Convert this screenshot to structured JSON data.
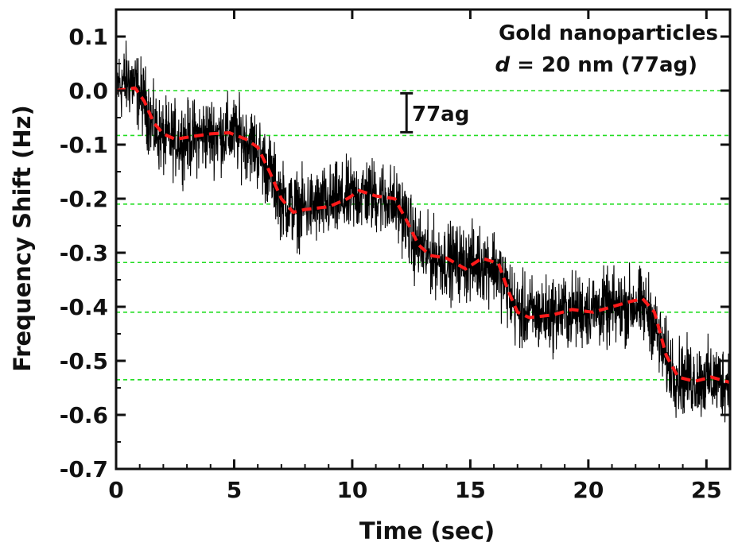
{
  "chart_data": {
    "type": "line",
    "xlabel": "Time (sec)",
    "ylabel": "Frequency Shift (Hz)",
    "xlim": [
      0,
      26
    ],
    "ylim": [
      -0.7,
      0.15
    ],
    "x_ticks": [
      "0",
      "5",
      "10",
      "15",
      "20",
      "25"
    ],
    "y_ticks": [
      "0.1",
      "0.0",
      "-0.1",
      "-0.2",
      "-0.3",
      "-0.4",
      "-0.5",
      "-0.6",
      "-0.7"
    ],
    "annotation_title": "Gold nanoparticles",
    "annotation_sub_italic": "d",
    "annotation_sub_rest": " = 20 nm (77ag)",
    "scale_bar_label": "77ag",
    "scale_bar_range": [
      -0.005,
      -0.077
    ],
    "step_levels": [
      0.0,
      -0.083,
      -0.21,
      -0.318,
      -0.41,
      -0.535
    ],
    "colors": {
      "raw": "#000000",
      "fit": "#ff1a1a",
      "grid": "#22dd22"
    },
    "series": [
      {
        "style": "raw",
        "envelope": [
          {
            "x": 0.0,
            "y": 0.01
          },
          {
            "x": 0.6,
            "y": 0.02
          },
          {
            "x": 1.2,
            "y": -0.02
          },
          {
            "x": 1.6,
            "y": -0.07
          },
          {
            "x": 2.0,
            "y": -0.09
          },
          {
            "x": 3.0,
            "y": -0.09
          },
          {
            "x": 4.0,
            "y": -0.08
          },
          {
            "x": 5.0,
            "y": -0.08
          },
          {
            "x": 5.8,
            "y": -0.1
          },
          {
            "x": 6.5,
            "y": -0.15
          },
          {
            "x": 7.0,
            "y": -0.2
          },
          {
            "x": 7.5,
            "y": -0.22
          },
          {
            "x": 8.5,
            "y": -0.215
          },
          {
            "x": 9.5,
            "y": -0.205
          },
          {
            "x": 10.5,
            "y": -0.19
          },
          {
            "x": 11.5,
            "y": -0.2
          },
          {
            "x": 12.2,
            "y": -0.23
          },
          {
            "x": 12.6,
            "y": -0.28
          },
          {
            "x": 13.2,
            "y": -0.305
          },
          {
            "x": 14.0,
            "y": -0.315
          },
          {
            "x": 15.0,
            "y": -0.32
          },
          {
            "x": 16.0,
            "y": -0.32
          },
          {
            "x": 16.6,
            "y": -0.37
          },
          {
            "x": 17.0,
            "y": -0.41
          },
          {
            "x": 18.0,
            "y": -0.415
          },
          {
            "x": 19.0,
            "y": -0.41
          },
          {
            "x": 20.0,
            "y": -0.405
          },
          {
            "x": 21.0,
            "y": -0.405
          },
          {
            "x": 22.0,
            "y": -0.395
          },
          {
            "x": 22.6,
            "y": -0.41
          },
          {
            "x": 23.2,
            "y": -0.49
          },
          {
            "x": 23.8,
            "y": -0.53
          },
          {
            "x": 24.5,
            "y": -0.535
          },
          {
            "x": 25.2,
            "y": -0.535
          },
          {
            "x": 26.0,
            "y": -0.54
          }
        ],
        "noise_amplitude": 0.05
      },
      {
        "style": "fit",
        "points": [
          {
            "x": 0.0,
            "y": 0.0
          },
          {
            "x": 0.8,
            "y": 0.005
          },
          {
            "x": 1.2,
            "y": -0.02
          },
          {
            "x": 1.6,
            "y": -0.06
          },
          {
            "x": 2.0,
            "y": -0.08
          },
          {
            "x": 2.5,
            "y": -0.09
          },
          {
            "x": 3.2,
            "y": -0.085
          },
          {
            "x": 4.0,
            "y": -0.08
          },
          {
            "x": 4.8,
            "y": -0.078
          },
          {
            "x": 5.5,
            "y": -0.09
          },
          {
            "x": 6.0,
            "y": -0.105
          },
          {
            "x": 6.5,
            "y": -0.15
          },
          {
            "x": 7.0,
            "y": -0.2
          },
          {
            "x": 7.5,
            "y": -0.225
          },
          {
            "x": 8.0,
            "y": -0.22
          },
          {
            "x": 9.0,
            "y": -0.215
          },
          {
            "x": 9.8,
            "y": -0.2
          },
          {
            "x": 10.3,
            "y": -0.185
          },
          {
            "x": 11.0,
            "y": -0.195
          },
          {
            "x": 11.8,
            "y": -0.2
          },
          {
            "x": 12.3,
            "y": -0.24
          },
          {
            "x": 12.8,
            "y": -0.285
          },
          {
            "x": 13.3,
            "y": -0.305
          },
          {
            "x": 14.0,
            "y": -0.31
          },
          {
            "x": 14.8,
            "y": -0.33
          },
          {
            "x": 15.5,
            "y": -0.31
          },
          {
            "x": 16.2,
            "y": -0.32
          },
          {
            "x": 16.6,
            "y": -0.37
          },
          {
            "x": 17.0,
            "y": -0.41
          },
          {
            "x": 17.5,
            "y": -0.42
          },
          {
            "x": 18.5,
            "y": -0.415
          },
          {
            "x": 19.3,
            "y": -0.405
          },
          {
            "x": 20.2,
            "y": -0.41
          },
          {
            "x": 21.0,
            "y": -0.4
          },
          {
            "x": 21.8,
            "y": -0.39
          },
          {
            "x": 22.3,
            "y": -0.385
          },
          {
            "x": 22.8,
            "y": -0.41
          },
          {
            "x": 23.3,
            "y": -0.49
          },
          {
            "x": 23.8,
            "y": -0.53
          },
          {
            "x": 24.5,
            "y": -0.538
          },
          {
            "x": 25.2,
            "y": -0.53
          },
          {
            "x": 26.0,
            "y": -0.54
          }
        ]
      }
    ]
  }
}
